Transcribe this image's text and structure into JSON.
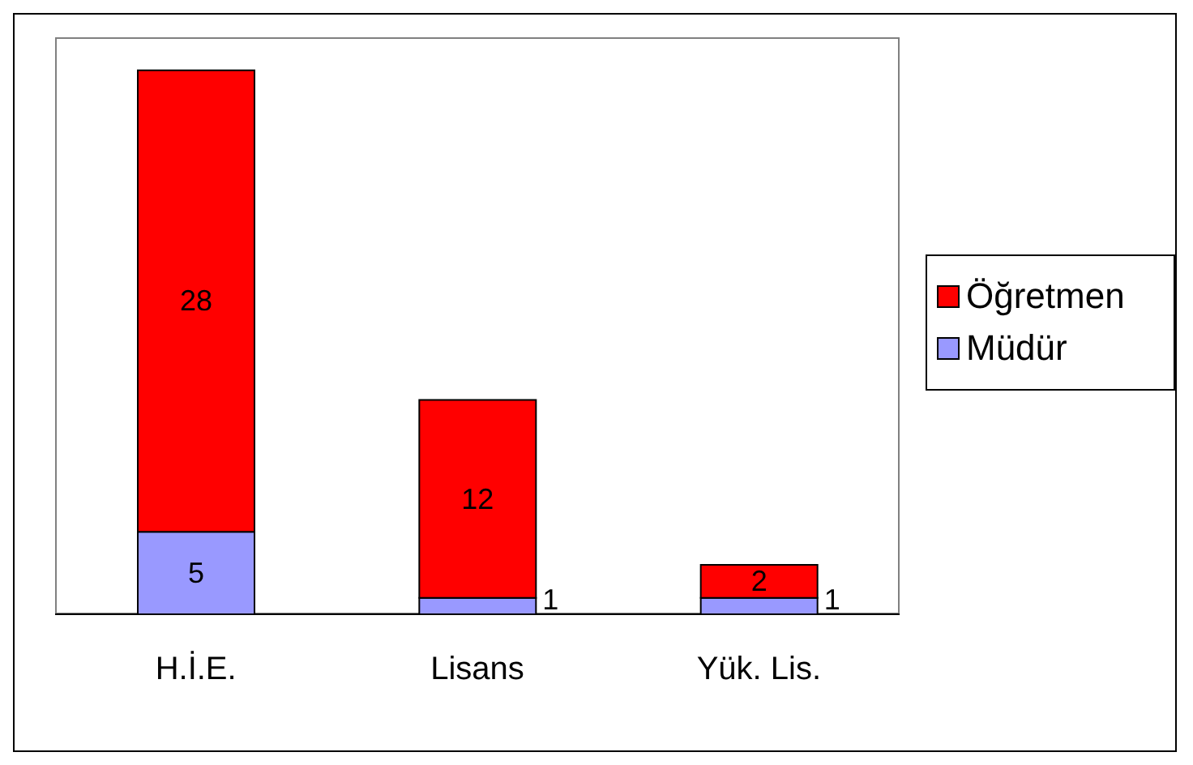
{
  "chart_data": {
    "type": "bar",
    "stacked": true,
    "categories": [
      "H.İ.E.",
      "Lisans",
      "Yük. Lis."
    ],
    "series": [
      {
        "name": "Müdür",
        "color": "#9999ff",
        "values": [
          5,
          1,
          1
        ]
      },
      {
        "name": "Öğretmen",
        "color": "#ff0000",
        "values": [
          28,
          12,
          2
        ]
      }
    ],
    "ylim": [
      0,
      35
    ],
    "data_labels": true,
    "legend": "right"
  }
}
